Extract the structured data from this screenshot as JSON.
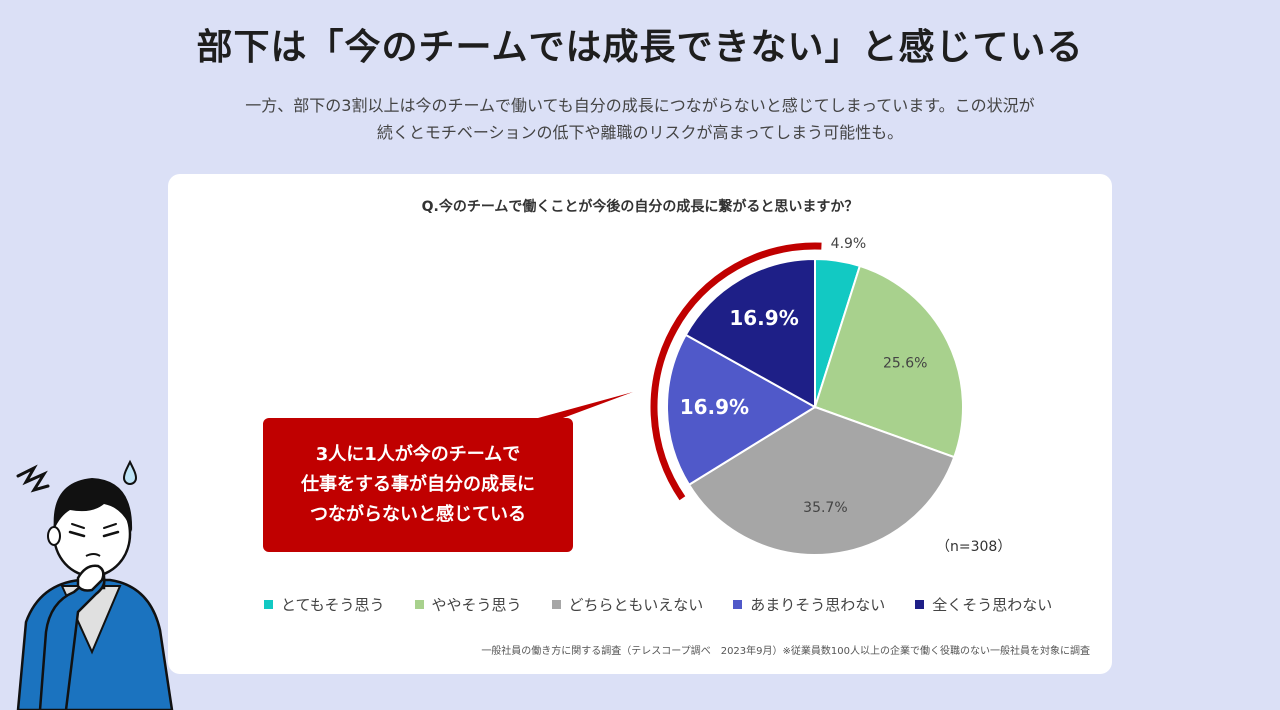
{
  "header": {
    "title": "部下は「今のチームでは成長できない」と感じている",
    "lead_line1": "一方、部下の3割以上は今のチームで働いても自分の成長につながらないと感じてしまっています。この状況が",
    "lead_line2": "続くとモチベーションの低下や離職のリスクが高まってしまう可能性も。"
  },
  "card": {
    "question": "Q.今のチームで働くことが今後の自分の成長に繋がると思いますか？",
    "callout": "3人に1人が今のチームで\n仕事をする事が自分の成長に\nつながらないと感じている",
    "sample_size": "（n=308）",
    "source": "一般社員の働き方に関する調査（テレスコープ調べ　2023年9月）※従業員数100人以上の企業で働く役職のない一般社員を対象に調査"
  },
  "colors": {
    "background": "#dbe0f6",
    "callout": "#c00000",
    "highlight_arc": "#c00000"
  },
  "chart_data": {
    "type": "pie",
    "categories": [
      "とてもそう思う",
      "ややそう思う",
      "どちらともいえない",
      "あまりそう思わない",
      "全くそう思わない"
    ],
    "values": [
      4.9,
      25.6,
      35.7,
      16.9,
      16.9
    ],
    "labels": [
      "4.9%",
      "25.6%",
      "35.7%",
      "16.9%",
      "16.9%"
    ],
    "colors": [
      "#12c9c3",
      "#a8d18d",
      "#a6a6a6",
      "#5059c9",
      "#1e1f87"
    ],
    "legend_position": "bottom"
  }
}
